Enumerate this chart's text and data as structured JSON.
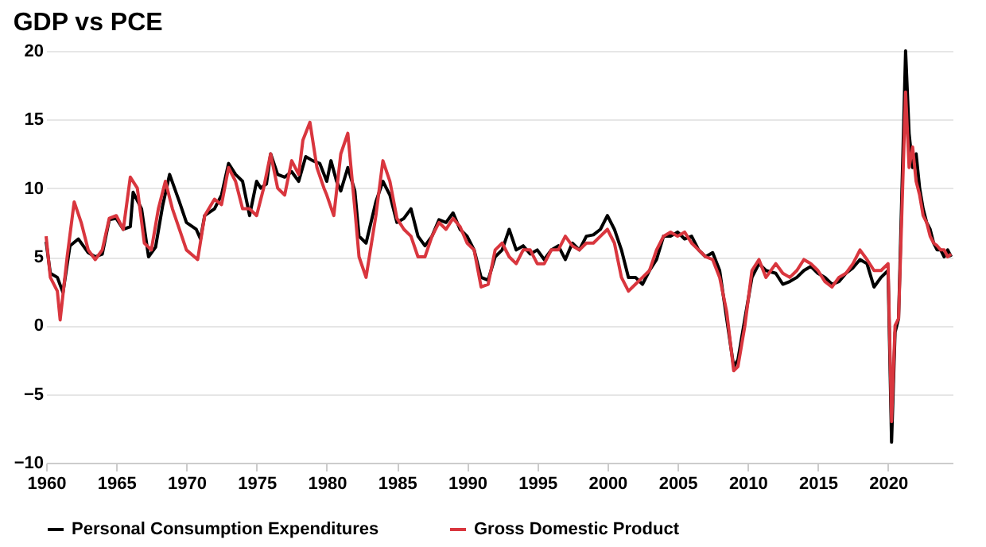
{
  "chart_data": {
    "type": "line",
    "title": "GDP vs PCE",
    "xlim": [
      1960,
      2024.6
    ],
    "xticks": [
      1960,
      1965,
      1970,
      1975,
      1980,
      1985,
      1990,
      1995,
      2000,
      2005,
      2010,
      2015,
      2020
    ],
    "ylim": [
      -10,
      20
    ],
    "yticks": [
      -10,
      -5,
      0,
      5,
      10,
      15,
      20
    ],
    "grid": "y",
    "legend": "bottom",
    "line_style": "solid",
    "marker": "none",
    "series": [
      {
        "name": "Personal Consumption Expenditures",
        "color": "#000000",
        "x": [
          1960,
          1960.3,
          1960.8,
          1961.2,
          1961.7,
          1962.3,
          1963,
          1963.5,
          1964,
          1964.5,
          1965,
          1965.5,
          1966,
          1966.2,
          1966.8,
          1967.3,
          1967.8,
          1968.3,
          1968.8,
          1969.5,
          1970,
          1970.7,
          1971,
          1971.3,
          1972,
          1972.5,
          1973,
          1973.5,
          1974,
          1974.5,
          1975,
          1975.3,
          1975.7,
          1976,
          1976.5,
          1977,
          1977.5,
          1978,
          1978.5,
          1979,
          1979.5,
          1980,
          1980.3,
          1980.7,
          1981,
          1981.5,
          1982,
          1982.3,
          1982.8,
          1983.5,
          1984,
          1984.5,
          1985,
          1985.5,
          1986,
          1986.5,
          1987,
          1987.5,
          1988,
          1988.5,
          1989,
          1989.5,
          1990,
          1990.5,
          1991,
          1991.5,
          1992,
          1992.5,
          1993,
          1993.5,
          1994,
          1994.5,
          1995,
          1995.5,
          1996,
          1996.5,
          1997,
          1997.5,
          1998,
          1998.5,
          1999,
          1999.5,
          2000,
          2000.5,
          2001,
          2001.5,
          2002,
          2002.5,
          2003,
          2003.5,
          2004,
          2004.5,
          2005,
          2005.5,
          2006,
          2006.5,
          2007,
          2007.5,
          2008,
          2008.5,
          2009,
          2009.3,
          2009.8,
          2010.3,
          2010.8,
          2011.3,
          2012,
          2012.5,
          2013,
          2013.5,
          2014,
          2014.5,
          2015,
          2015.5,
          2016,
          2016.5,
          2017,
          2017.5,
          2018,
          2018.5,
          2019,
          2019.5,
          2020,
          2020.25,
          2020.5,
          2020.75,
          2021.25,
          2021.5,
          2021.75,
          2022,
          2022.25,
          2022.5,
          2022.75,
          2023,
          2023.25,
          2023.5,
          2023.75,
          2024,
          2024.25,
          2024.5
        ],
        "values": [
          6.1,
          3.8,
          3.5,
          2.4,
          5.8,
          6.3,
          5.3,
          5.0,
          5.2,
          7.7,
          7.8,
          7.0,
          7.2,
          9.7,
          8.5,
          5.0,
          5.7,
          8.7,
          11.0,
          9.0,
          7.5,
          7.0,
          6.3,
          8.0,
          8.5,
          9.5,
          11.8,
          11.0,
          10.5,
          8.0,
          10.5,
          10.0,
          10.3,
          12.5,
          11.0,
          10.8,
          11.2,
          10.5,
          12.3,
          12.0,
          11.8,
          10.5,
          12.0,
          10.5,
          9.8,
          11.5,
          9.8,
          6.5,
          6.0,
          9.0,
          10.5,
          9.5,
          7.5,
          7.8,
          8.5,
          6.5,
          5.8,
          6.5,
          7.7,
          7.5,
          8.2,
          7.0,
          6.5,
          5.5,
          3.5,
          3.3,
          5.0,
          5.5,
          7.0,
          5.5,
          5.8,
          5.2,
          5.5,
          4.8,
          5.5,
          5.8,
          4.8,
          6.0,
          5.5,
          6.5,
          6.6,
          7.0,
          8.0,
          7.0,
          5.5,
          3.5,
          3.5,
          3.0,
          4.0,
          4.8,
          6.5,
          6.5,
          6.8,
          6.3,
          6.5,
          5.5,
          5.0,
          5.3,
          4.0,
          0.5,
          -3.0,
          -2.5,
          0.5,
          3.5,
          4.5,
          4.0,
          3.8,
          3.0,
          3.2,
          3.5,
          4.0,
          4.3,
          3.8,
          3.5,
          3.0,
          3.2,
          3.8,
          4.2,
          4.8,
          4.5,
          2.8,
          3.5,
          4.0,
          -8.5,
          -0.5,
          0.5,
          20.0,
          14.0,
          11.5,
          12.5,
          10.0,
          8.5,
          7.5,
          7.0,
          6.0,
          5.5,
          5.5,
          5.0,
          5.5,
          5.0
        ]
      },
      {
        "name": "Gross Domestic Product",
        "color": "#d9363e",
        "x": [
          1960,
          1960.3,
          1960.8,
          1961,
          1961.5,
          1962,
          1962.5,
          1963,
          1963.5,
          1964,
          1964.5,
          1965,
          1965.5,
          1966,
          1966.5,
          1967,
          1967.5,
          1968,
          1968.5,
          1969,
          1969.5,
          1970,
          1970.8,
          1971.3,
          1972,
          1972.5,
          1973,
          1973.5,
          1974,
          1974.5,
          1975,
          1975.5,
          1976,
          1976.5,
          1977,
          1977.5,
          1978,
          1978.3,
          1978.8,
          1979.3,
          1979.8,
          1980,
          1980.5,
          1981,
          1981.5,
          1982,
          1982.3,
          1982.8,
          1983.5,
          1984,
          1984.5,
          1985,
          1985.5,
          1986,
          1986.5,
          1987,
          1987.5,
          1988,
          1988.5,
          1989,
          1989.5,
          1990,
          1990.5,
          1991,
          1991.5,
          1992,
          1992.5,
          1993,
          1993.5,
          1994,
          1994.5,
          1995,
          1995.5,
          1996,
          1996.5,
          1997,
          1997.5,
          1998,
          1998.5,
          1999,
          1999.5,
          2000,
          2000.5,
          2001,
          2001.5,
          2002,
          2002.5,
          2003,
          2003.5,
          2004,
          2004.5,
          2005,
          2005.5,
          2006,
          2006.5,
          2007,
          2007.5,
          2008,
          2008.5,
          2009,
          2009.3,
          2009.8,
          2010.3,
          2010.8,
          2011.3,
          2012,
          2012.5,
          2013,
          2013.5,
          2014,
          2014.5,
          2015,
          2015.5,
          2016,
          2016.5,
          2017,
          2017.5,
          2018,
          2018.5,
          2019,
          2019.5,
          2020,
          2020.25,
          2020.5,
          2020.75,
          2021.25,
          2021.5,
          2021.75,
          2022,
          2022.25,
          2022.5,
          2022.75,
          2023,
          2023.25,
          2023.5,
          2023.75,
          2024,
          2024.25,
          2024.5
        ],
        "values": [
          6.5,
          3.5,
          2.5,
          0.4,
          5.0,
          9.0,
          7.5,
          5.5,
          4.8,
          5.5,
          7.8,
          8.0,
          7.0,
          10.8,
          10.0,
          6.0,
          5.5,
          8.5,
          10.5,
          8.5,
          7.0,
          5.5,
          4.8,
          8.0,
          9.2,
          8.8,
          11.5,
          10.5,
          8.5,
          8.5,
          8.0,
          10.0,
          12.5,
          10.0,
          9.5,
          12.0,
          11.0,
          13.5,
          14.8,
          11.5,
          10.0,
          9.5,
          8.0,
          12.5,
          14.0,
          8.5,
          5.0,
          3.5,
          8.0,
          12.0,
          10.5,
          7.8,
          7.0,
          6.5,
          5.0,
          5.0,
          6.5,
          7.5,
          7.0,
          7.8,
          7.2,
          6.0,
          5.5,
          2.8,
          3.0,
          5.5,
          6.0,
          5.0,
          4.5,
          5.5,
          5.5,
          4.5,
          4.5,
          5.5,
          5.5,
          6.5,
          5.8,
          5.5,
          6.0,
          6.0,
          6.5,
          7.0,
          6.0,
          3.5,
          2.5,
          3.0,
          3.5,
          4.0,
          5.5,
          6.5,
          6.8,
          6.5,
          6.8,
          6.0,
          5.5,
          5.0,
          4.8,
          3.5,
          1.0,
          -3.3,
          -3.0,
          0.0,
          4.0,
          4.8,
          3.5,
          4.5,
          3.8,
          3.5,
          4.0,
          4.8,
          4.5,
          4.0,
          3.2,
          2.8,
          3.5,
          3.8,
          4.5,
          5.5,
          4.8,
          4.0,
          4.0,
          4.5,
          -7.0,
          0.0,
          0.5,
          17.0,
          11.5,
          13.0,
          10.5,
          9.5,
          8.0,
          7.5,
          6.5,
          6.0,
          5.8,
          5.5,
          5.5,
          5.0,
          5.2
        ]
      }
    ]
  }
}
